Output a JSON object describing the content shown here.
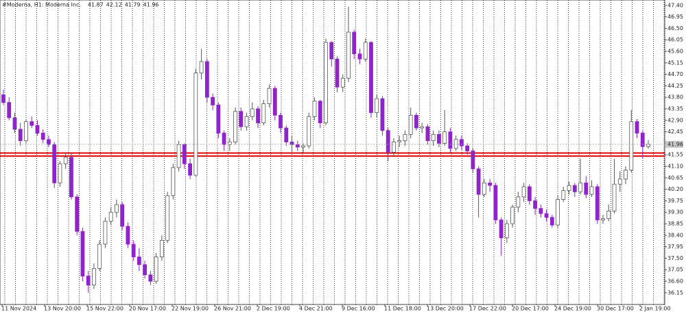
{
  "chart_data": {
    "type": "candlestick",
    "title": "#Moderna, H1: Moderna Inc.",
    "up_color": "#ffffff",
    "down_color": "#8e24c9",
    "outline_color": "#555555",
    "ylim": [
      35.69,
      47.61
    ],
    "yticks": [
      {
        "value": 47.4,
        "label": "47.40"
      },
      46.95,
      {
        "value": 46.5,
        "label": "46.50"
      },
      46.05,
      {
        "value": 45.6,
        "label": "45.60"
      },
      45.15,
      {
        "value": 44.7,
        "label": "44.70"
      },
      44.25,
      {
        "value": 43.8,
        "label": "43.80"
      },
      43.35,
      {
        "value": 42.9,
        "label": "42.90"
      },
      42.45,
      {
        "value": 42,
        "label": "42.00"
      },
      41.55,
      {
        "value": 41.1,
        "label": "41.10"
      },
      40.65,
      {
        "value": 40.2,
        "label": "40.20"
      },
      39.75,
      {
        "value": 39.3,
        "label": "39.30"
      },
      38.85,
      {
        "value": 38.4,
        "label": "38.40"
      },
      37.95,
      {
        "value": 37.5,
        "label": "37.50"
      },
      37.05,
      {
        "value": 36.6,
        "label": "36.60"
      },
      36.15
    ],
    "xticks": [
      "11 Nov 2024",
      "13 Nov 20:00",
      "15 Nov 22:00",
      "20 Nov 17:00",
      "22 Nov 19:00",
      "26 Nov 21:00",
      "2 Dec 19:00",
      "4 Dec 21:00",
      "9 Dec 16:00",
      "11 Dec 18:00",
      "13 Dec 20:00",
      "17 Dec 22:00",
      "20 Dec 17:00",
      "24 Dec 19:00",
      "30 Dec 17:00",
      "2 Jan 19:00"
    ],
    "levels": [
      {
        "value": 41.62,
        "color": "#e00000"
      },
      {
        "value": 41.5,
        "color": "#e00000"
      }
    ],
    "candles": [
      [
        43.9,
        44.1,
        43.5,
        43.6
      ],
      [
        43.6,
        43.8,
        42.9,
        43.0
      ],
      [
        43.0,
        43.2,
        42.4,
        42.55
      ],
      [
        42.55,
        42.8,
        41.9,
        42.1
      ],
      [
        42.1,
        42.95,
        42.0,
        42.85
      ],
      [
        42.85,
        43.05,
        42.6,
        42.7
      ],
      [
        42.7,
        42.9,
        42.3,
        42.4
      ],
      [
        42.4,
        42.55,
        42.0,
        42.15
      ],
      [
        42.15,
        42.3,
        41.85,
        41.95
      ],
      [
        41.95,
        42.05,
        40.25,
        40.45
      ],
      [
        40.45,
        41.3,
        40.3,
        41.2
      ],
      [
        41.2,
        41.65,
        41.0,
        41.45
      ],
      [
        41.45,
        41.6,
        39.8,
        39.9
      ],
      [
        39.9,
        40.0,
        38.4,
        38.55
      ],
      [
        38.55,
        38.7,
        36.6,
        36.8
      ],
      [
        36.8,
        37.0,
        36.15,
        36.45
      ],
      [
        36.45,
        37.3,
        36.3,
        37.1
      ],
      [
        37.1,
        38.2,
        37.0,
        38.05
      ],
      [
        38.05,
        39.1,
        37.9,
        38.95
      ],
      [
        38.95,
        39.5,
        38.8,
        39.3
      ],
      [
        39.3,
        39.8,
        39.1,
        39.6
      ],
      [
        39.6,
        39.7,
        38.6,
        38.75
      ],
      [
        38.75,
        38.9,
        37.9,
        38.05
      ],
      [
        38.05,
        38.2,
        37.4,
        37.55
      ],
      [
        37.55,
        37.9,
        37.0,
        37.25
      ],
      [
        37.25,
        37.4,
        36.7,
        36.85
      ],
      [
        36.85,
        37.0,
        36.45,
        36.6
      ],
      [
        36.6,
        37.7,
        36.5,
        37.55
      ],
      [
        37.55,
        38.4,
        37.4,
        38.2
      ],
      [
        38.2,
        40.1,
        38.1,
        39.95
      ],
      [
        39.95,
        41.2,
        39.8,
        41.05
      ],
      [
        41.05,
        42.1,
        40.9,
        41.95
      ],
      [
        41.95,
        42.0,
        41.0,
        41.2
      ],
      [
        41.2,
        41.4,
        40.6,
        40.75
      ],
      [
        40.75,
        44.9,
        40.7,
        44.75
      ],
      [
        44.75,
        45.7,
        44.5,
        45.2
      ],
      [
        45.2,
        45.3,
        43.6,
        43.8
      ],
      [
        43.8,
        43.95,
        43.3,
        43.5
      ],
      [
        43.5,
        43.6,
        42.2,
        42.4
      ],
      [
        42.4,
        42.5,
        41.7,
        41.95
      ],
      [
        41.95,
        42.2,
        41.7,
        42.05
      ],
      [
        42.05,
        43.4,
        41.95,
        43.25
      ],
      [
        43.25,
        43.4,
        42.5,
        42.65
      ],
      [
        42.65,
        43.2,
        42.5,
        43.05
      ],
      [
        43.05,
        43.6,
        42.9,
        43.35
      ],
      [
        43.35,
        43.45,
        42.6,
        42.8
      ],
      [
        42.8,
        43.7,
        42.7,
        43.55
      ],
      [
        43.55,
        44.3,
        43.4,
        44.15
      ],
      [
        44.15,
        44.25,
        42.9,
        43.1
      ],
      [
        43.1,
        43.2,
        42.4,
        42.6
      ],
      [
        42.6,
        42.7,
        41.9,
        42.05
      ],
      [
        42.05,
        42.3,
        41.6,
        41.95
      ],
      [
        41.95,
        42.1,
        41.7,
        41.85
      ],
      [
        41.85,
        42.0,
        41.6,
        41.9
      ],
      [
        41.9,
        43.2,
        41.8,
        43.05
      ],
      [
        43.05,
        43.8,
        42.9,
        43.65
      ],
      [
        43.65,
        43.7,
        42.6,
        42.8
      ],
      [
        42.8,
        46.1,
        42.7,
        45.95
      ],
      [
        45.95,
        46.0,
        45.0,
        45.3
      ],
      [
        45.3,
        45.4,
        44.0,
        44.2
      ],
      [
        44.2,
        44.7,
        44.0,
        44.55
      ],
      [
        44.55,
        47.35,
        44.4,
        46.35
      ],
      [
        46.35,
        46.45,
        45.3,
        45.5
      ],
      [
        45.5,
        45.7,
        45.1,
        45.3
      ],
      [
        45.3,
        46.1,
        45.2,
        45.95
      ],
      [
        45.95,
        46.0,
        43.0,
        43.2
      ],
      [
        43.2,
        43.9,
        43.0,
        43.75
      ],
      [
        43.75,
        43.85,
        42.3,
        42.5
      ],
      [
        42.5,
        42.6,
        41.3,
        41.65
      ],
      [
        41.65,
        42.2,
        41.5,
        42.05
      ],
      [
        42.05,
        42.3,
        41.85,
        42.1
      ],
      [
        42.1,
        42.5,
        41.9,
        42.35
      ],
      [
        42.35,
        43.4,
        42.2,
        43.1
      ],
      [
        43.1,
        43.2,
        42.5,
        42.6
      ],
      [
        42.6,
        42.8,
        42.4,
        42.65
      ],
      [
        42.65,
        42.75,
        41.95,
        42.1
      ],
      [
        42.1,
        42.5,
        41.9,
        42.35
      ],
      [
        42.35,
        42.5,
        41.85,
        42.0
      ],
      [
        42.0,
        43.3,
        41.9,
        42.45
      ],
      [
        42.45,
        42.6,
        41.65,
        41.8
      ],
      [
        41.8,
        42.3,
        41.7,
        42.15
      ],
      [
        42.15,
        42.3,
        41.75,
        41.9
      ],
      [
        41.9,
        42.0,
        41.55,
        41.7
      ],
      [
        41.7,
        41.8,
        40.85,
        41.0
      ],
      [
        41.0,
        41.1,
        39.1,
        40.0
      ],
      [
        40.0,
        40.6,
        39.9,
        40.45
      ],
      [
        40.45,
        40.6,
        40.1,
        40.35
      ],
      [
        40.35,
        40.45,
        38.85,
        39.0
      ],
      [
        39.0,
        39.1,
        37.6,
        38.3
      ],
      [
        38.3,
        39.0,
        38.1,
        38.85
      ],
      [
        38.85,
        39.6,
        38.7,
        39.5
      ],
      [
        39.5,
        40.1,
        39.3,
        39.9
      ],
      [
        39.9,
        40.45,
        39.7,
        40.3
      ],
      [
        40.3,
        40.4,
        39.6,
        39.75
      ],
      [
        39.75,
        39.9,
        39.2,
        39.45
      ],
      [
        39.45,
        39.6,
        39.1,
        39.25
      ],
      [
        39.25,
        39.4,
        38.95,
        39.1
      ],
      [
        39.1,
        39.2,
        38.7,
        38.8
      ],
      [
        38.8,
        39.95,
        38.7,
        39.8
      ],
      [
        39.8,
        40.3,
        39.7,
        40.15
      ],
      [
        40.15,
        40.5,
        40.0,
        40.35
      ],
      [
        40.35,
        40.45,
        39.9,
        40.1
      ],
      [
        40.1,
        41.4,
        40.0,
        40.45
      ],
      [
        40.45,
        40.7,
        39.85,
        40.0
      ],
      [
        40.0,
        40.55,
        39.9,
        40.3
      ],
      [
        40.3,
        40.4,
        38.85,
        39.0
      ],
      [
        39.0,
        39.2,
        38.85,
        39.05
      ],
      [
        39.05,
        39.6,
        38.95,
        39.35
      ],
      [
        39.35,
        41.4,
        39.25,
        40.4
      ],
      [
        40.4,
        40.9,
        40.1,
        40.6
      ],
      [
        40.6,
        41.1,
        40.4,
        40.95
      ],
      [
        40.95,
        43.3,
        40.85,
        42.85
      ],
      [
        42.85,
        42.95,
        42.2,
        42.4
      ],
      [
        42.4,
        42.5,
        41.4,
        41.87
      ],
      [
        41.87,
        42.12,
        41.79,
        41.96
      ]
    ]
  }
}
